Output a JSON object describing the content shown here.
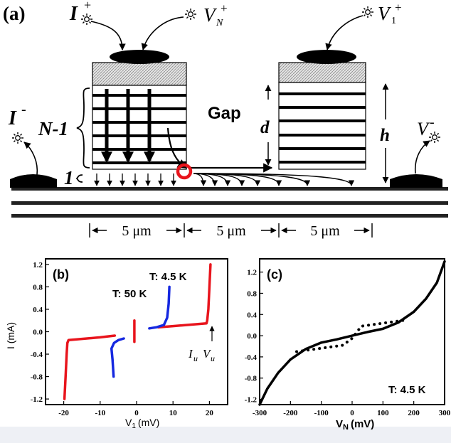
{
  "panel_a": {
    "label": "(a)",
    "i_plus": "I",
    "i_plus_sup": "+",
    "v_n": "V",
    "v_n_sub": "N",
    "v_n_sup": "+",
    "v1": "V",
    "v1_sub": "1",
    "v1_sup": "+",
    "i_minus": "I",
    "i_minus_sup": "-",
    "v_minus": "V",
    "v_minus_sup": "-",
    "n_minus_1": "N-1",
    "one": "1",
    "gap": "Gap",
    "d": "d",
    "h": "h",
    "scale_1": "5 μm",
    "scale_2": "5 μm",
    "scale_3": "5 μm"
  },
  "chart_data": [
    {
      "panel": "(b)",
      "type": "line",
      "xlabel": "V1 (mV)",
      "xlabel_main": "V",
      "xlabel_sub": "1",
      "xlabel_unit": "(mV)",
      "ylabel": "I (mA)",
      "xlim": [
        -25,
        25
      ],
      "ylim": [
        -1.3,
        1.3
      ],
      "xticks": [
        -20,
        -10,
        0,
        10,
        20
      ],
      "yticks": [
        -1.2,
        -0.8,
        -0.4,
        0.0,
        0.4,
        0.8,
        1.2
      ],
      "xtick_labels": [
        "-20",
        "-10",
        "0",
        "10",
        "20"
      ],
      "ytick_labels": [
        "-1.2",
        "-0.8",
        "-0.4",
        "0.0",
        "0.4",
        "0.8",
        "1.2"
      ],
      "annotations": {
        "t45": "T: 4.5 K",
        "t50": "T: 50 K",
        "iu": "I",
        "iu_sub": "u",
        "vu": "V",
        "vu_sub": "u"
      },
      "series": [
        {
          "color": "#e8141c",
          "points": [
            [
              20.3,
              1.2
            ],
            [
              20.0,
              0.8
            ],
            [
              19.7,
              0.4
            ],
            [
              19.4,
              0.2
            ],
            [
              19.2,
              0.15
            ],
            [
              10,
              0.1
            ],
            [
              6,
              0.08
            ]
          ]
        },
        {
          "color": "#e8141c",
          "points": [
            [
              -19.8,
              -1.2
            ],
            [
              -19.5,
              -0.8
            ],
            [
              -19.2,
              -0.4
            ],
            [
              -19.0,
              -0.2
            ],
            [
              -18.7,
              -0.15
            ],
            [
              -10,
              -0.1
            ],
            [
              -6,
              -0.07
            ]
          ]
        },
        {
          "color": "#e8141c",
          "points": [
            [
              -0.6,
              -0.18
            ],
            [
              -0.6,
              0.2
            ]
          ]
        },
        {
          "color": "#1528e0",
          "points": [
            [
              9.0,
              0.8
            ],
            [
              8.8,
              0.5
            ],
            [
              8.4,
              0.25
            ],
            [
              7.5,
              0.12
            ],
            [
              5.5,
              0.08
            ],
            [
              3.5,
              0.06
            ]
          ]
        },
        {
          "color": "#1528e0",
          "points": [
            [
              -6.3,
              -0.8
            ],
            [
              -6.6,
              -0.5
            ],
            [
              -6.9,
              -0.3
            ],
            [
              -6.2,
              -0.2
            ],
            [
              -5,
              -0.15
            ],
            [
              -3.5,
              -0.12
            ]
          ]
        }
      ]
    },
    {
      "panel": "(c)",
      "type": "line",
      "xlabel": "VN (mV)",
      "xlabel_main": "V",
      "xlabel_sub": "N",
      "xlabel_unit": "(mV)",
      "ylabel": "",
      "xlim": [
        -300,
        300
      ],
      "ylim": [
        -1.3,
        1.45
      ],
      "xticks": [
        -300,
        -200,
        -100,
        0,
        100,
        200,
        300
      ],
      "yticks": [
        -1.2,
        -0.8,
        -0.4,
        0.0,
        0.4,
        0.8,
        1.2
      ],
      "xtick_labels": [
        "-300",
        "-200",
        "-100",
        "0",
        "100",
        "200",
        "300"
      ],
      "ytick_labels": [
        "-1.2",
        "-0.8",
        "-0.4",
        "0.0",
        "0.4",
        "0.8",
        "1.2"
      ],
      "annotations": {
        "t45": "T: 4.5 K"
      },
      "series": [
        {
          "color": "#000000",
          "points": [
            [
              -300,
              -1.3
            ],
            [
              -275,
              -1.0
            ],
            [
              -240,
              -0.7
            ],
            [
              -200,
              -0.45
            ],
            [
              -150,
              -0.25
            ],
            [
              -100,
              -0.13
            ],
            [
              -50,
              -0.07
            ],
            [
              0,
              0.0
            ],
            [
              50,
              0.07
            ],
            [
              100,
              0.13
            ],
            [
              150,
              0.25
            ],
            [
              200,
              0.45
            ],
            [
              240,
              0.7
            ],
            [
              275,
              1.0
            ],
            [
              300,
              1.4
            ]
          ]
        },
        {
          "color": "#000000",
          "dotted": true,
          "points": [
            [
              -180,
              -0.3
            ],
            [
              -130,
              -0.26
            ],
            [
              -80,
              -0.22
            ],
            [
              -30,
              -0.18
            ],
            [
              0,
              -0.05
            ],
            [
              30,
              0.18
            ],
            [
              80,
              0.22
            ],
            [
              130,
              0.26
            ],
            [
              180,
              0.3
            ]
          ]
        }
      ]
    }
  ]
}
